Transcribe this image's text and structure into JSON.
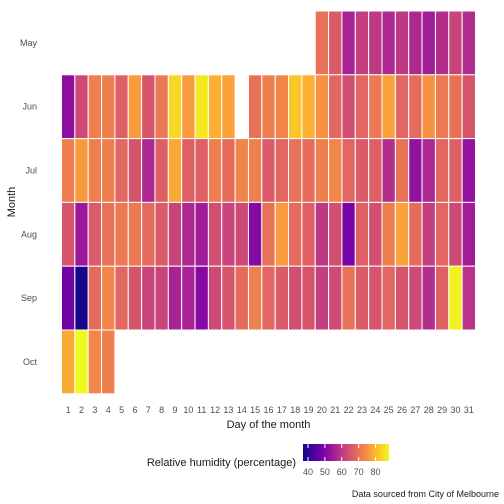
{
  "chart_data": {
    "type": "heatmap",
    "title": "",
    "xlabel": "Day of the month",
    "ylabel": "Month",
    "x_ticks": [
      "1",
      "2",
      "3",
      "4",
      "5",
      "6",
      "7",
      "8",
      "9",
      "10",
      "11",
      "12",
      "13",
      "14",
      "15",
      "16",
      "17",
      "18",
      "19",
      "20",
      "21",
      "22",
      "23",
      "24",
      "25",
      "26",
      "27",
      "28",
      "29",
      "30",
      "31"
    ],
    "y_categories": [
      "May",
      "Jun",
      "Jul",
      "Aug",
      "Sep",
      "Oct"
    ],
    "legend": {
      "title": "Relative humidity (percentage)",
      "ticks": [
        40,
        50,
        60,
        70,
        80
      ],
      "range": [
        37,
        88
      ],
      "colorscale": "plasma",
      "placement": "bottom"
    },
    "caption": "Data sourced from City of Melbourne",
    "grid": false,
    "rows": [
      {
        "month": "May",
        "values": [
          null,
          null,
          null,
          null,
          null,
          null,
          null,
          null,
          null,
          null,
          null,
          null,
          null,
          null,
          null,
          null,
          null,
          null,
          null,
          70,
          66,
          56,
          61,
          60,
          57,
          60,
          57,
          55,
          58,
          62,
          58
        ]
      },
      {
        "month": "Jun",
        "values": [
          52,
          63,
          72,
          72,
          67,
          76,
          65,
          71,
          84,
          76,
          86,
          79,
          77,
          null,
          70,
          72,
          73,
          82,
          79,
          75,
          68,
          64,
          68,
          71,
          77,
          68,
          69,
          75,
          71,
          70,
          65
        ]
      },
      {
        "month": "Jul",
        "values": [
          72,
          76,
          72,
          72,
          68,
          65,
          57,
          67,
          78,
          67,
          67,
          72,
          69,
          73,
          72,
          66,
          68,
          70,
          69,
          72,
          73,
          68,
          66,
          67,
          58,
          70,
          53,
          57,
          68,
          67,
          53
        ]
      },
      {
        "month": "Aug",
        "values": [
          65,
          54,
          66,
          70,
          71,
          71,
          69,
          66,
          62,
          57,
          55,
          64,
          62,
          63,
          51,
          70,
          76,
          69,
          67,
          60,
          64,
          49,
          67,
          64,
          72,
          77,
          69,
          61,
          68,
          63,
          55
        ]
      },
      {
        "month": "Sep",
        "values": [
          48,
          38,
          69,
          73,
          68,
          65,
          62,
          62,
          56,
          56,
          51,
          63,
          65,
          69,
          72,
          68,
          66,
          64,
          65,
          61,
          63,
          70,
          66,
          65,
          68,
          65,
          63,
          58,
          67,
          87,
          59
        ]
      },
      {
        "month": "Oct",
        "values": [
          78,
          88,
          73,
          72,
          null,
          null,
          null,
          null,
          null,
          null,
          null,
          null,
          null,
          null,
          null,
          null,
          null,
          null,
          null,
          null,
          null,
          null,
          null,
          null,
          null,
          null,
          null,
          null,
          null,
          null,
          null
        ]
      }
    ]
  }
}
